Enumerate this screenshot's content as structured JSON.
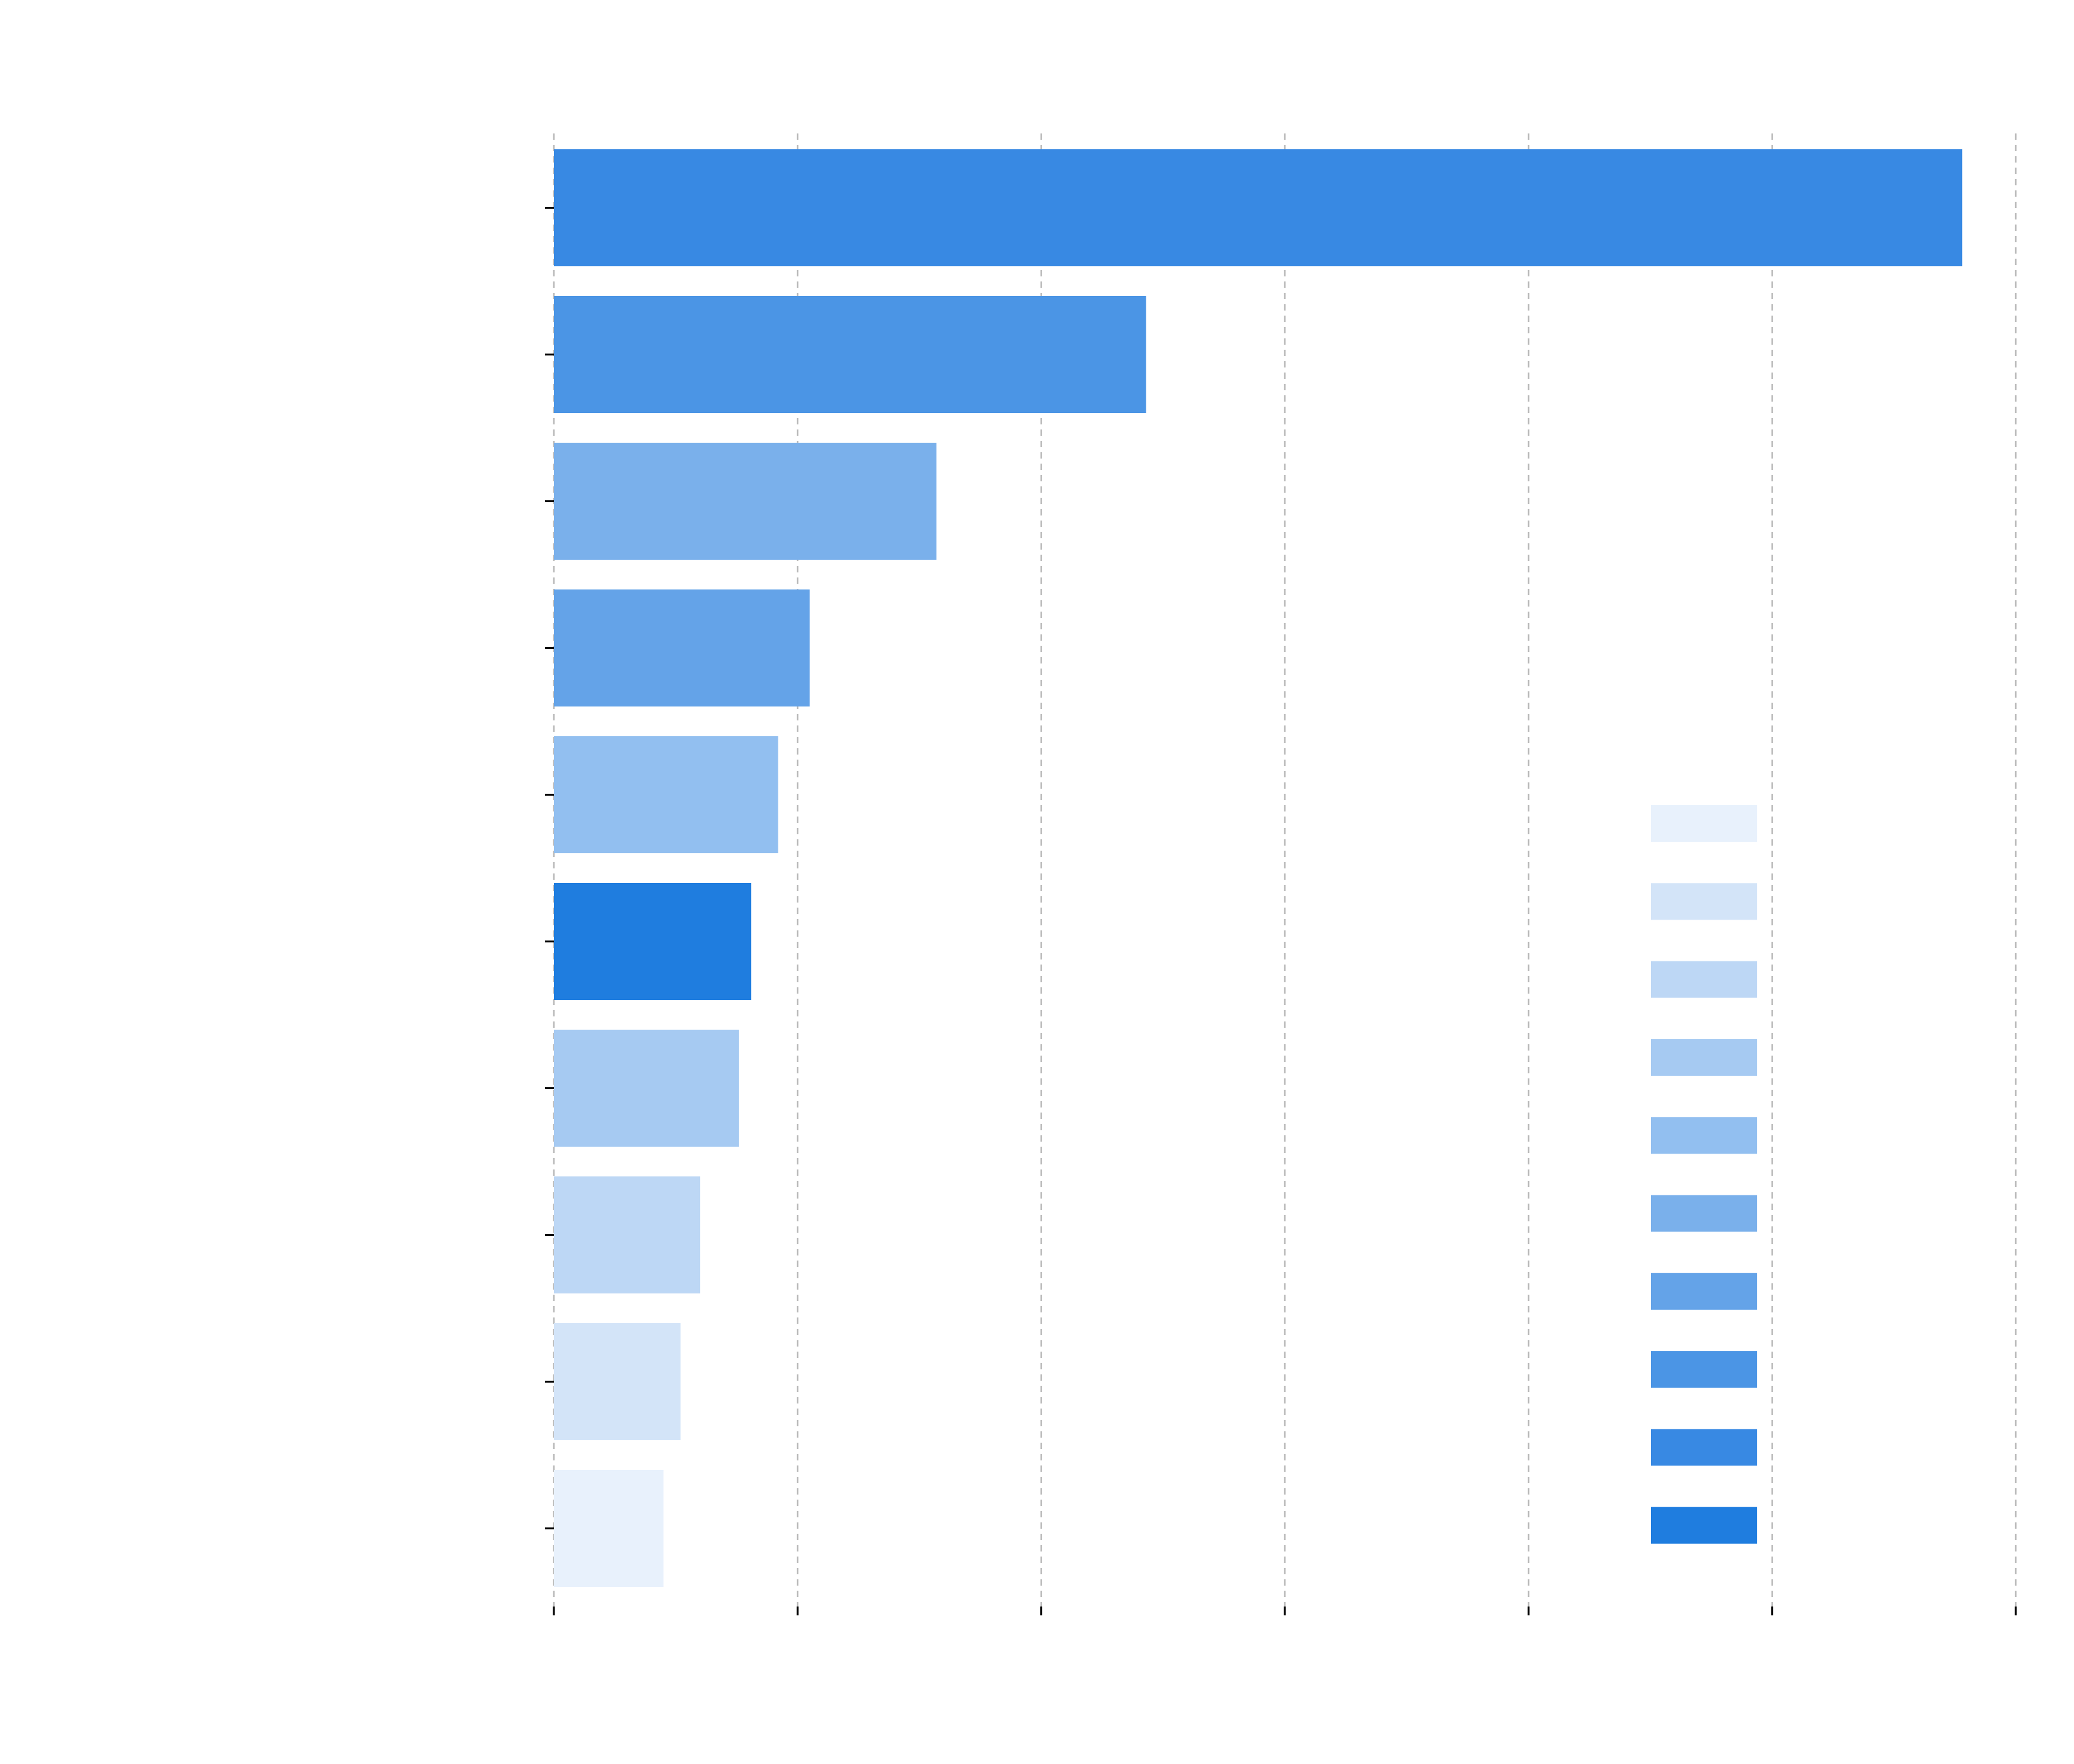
{
  "chart_data": {
    "type": "bar",
    "orientation": "horizontal",
    "title": "",
    "xlabel": "",
    "ylabel": "",
    "xlim": [
      0,
      6
    ],
    "x_ticks": [
      0,
      1,
      2,
      3,
      4,
      5,
      6
    ],
    "grid": true,
    "legend": {
      "placement": "right",
      "entries": 10
    },
    "bars": [
      {
        "value": 5.78,
        "color": "#3889e3"
      },
      {
        "value": 2.43,
        "color": "#4b95e5"
      },
      {
        "value": 1.57,
        "color": "#7ab0eb"
      },
      {
        "value": 1.05,
        "color": "#64a3e8"
      },
      {
        "value": 0.92,
        "color": "#92bff0"
      },
      {
        "value": 0.81,
        "color": "#1f7ddf"
      },
      {
        "value": 0.76,
        "color": "#a6caf2"
      },
      {
        "value": 0.6,
        "color": "#bdd7f5"
      },
      {
        "value": 0.52,
        "color": "#d3e4f8"
      },
      {
        "value": 0.45,
        "color": "#e8f1fc"
      }
    ],
    "legend_colors": [
      "#e8f1fc",
      "#d3e4f8",
      "#bdd7f5",
      "#a6caf2",
      "#92bff0",
      "#7ab0eb",
      "#64a3e8",
      "#4b95e5",
      "#3889e3",
      "#1f7ddf"
    ]
  }
}
